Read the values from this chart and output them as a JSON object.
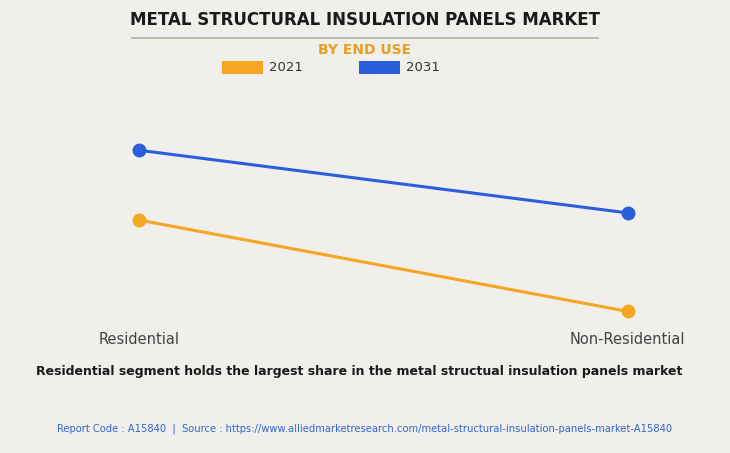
{
  "title": "METAL STRUCTURAL INSULATION PANELS MARKET",
  "subtitle": "BY END USE",
  "categories": [
    "Residential",
    "Non-Residential"
  ],
  "series": [
    {
      "label": "2021",
      "color": "#F5A623",
      "values": [
        0.58,
        0.07
      ],
      "marker": "o",
      "markersize": 9
    },
    {
      "label": "2031",
      "color": "#2B5EDB",
      "values": [
        0.97,
        0.62
      ],
      "marker": "o",
      "markersize": 9
    }
  ],
  "ylim": [
    0.0,
    1.05
  ],
  "xlim": [
    -0.15,
    1.15
  ],
  "background_color": "#F0EFEB",
  "plot_bg_color": "#F0EFEB",
  "grid_color": "#D0CFC9",
  "subtitle_color": "#E8A020",
  "title_fontsize": 12,
  "subtitle_fontsize": 10,
  "footer_note": "Residential segment holds the largest share in the metal structual insulation panels market",
  "footer_source": "Report Code : A15840  |  Source : https://www.alliedmarketresearch.com/metal-structural-insulation-panels-market-A15840",
  "footer_source_color": "#3366CC",
  "line_width": 2.2,
  "n_gridlines": 6
}
